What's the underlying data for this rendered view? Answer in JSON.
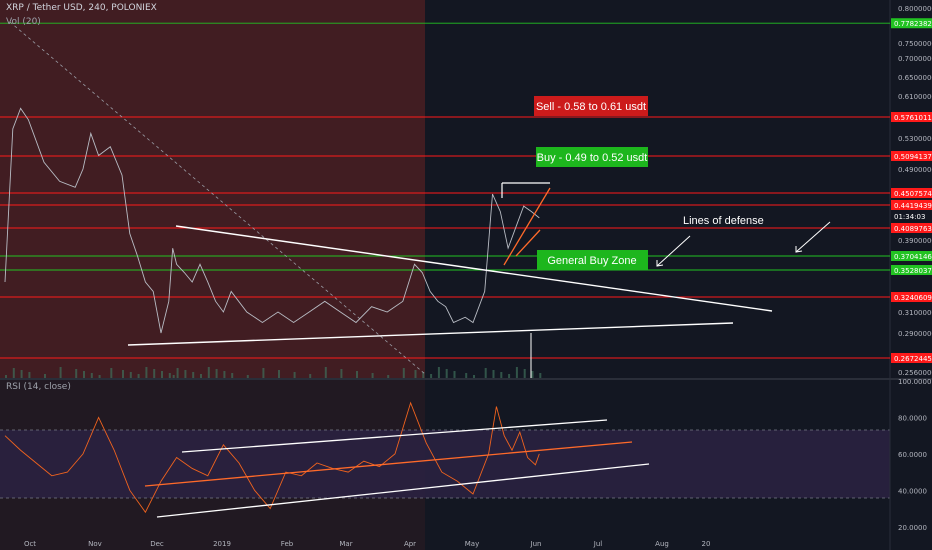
{
  "header": {
    "symbol_line": "XRP / Tether USD, 240, POLONIEX",
    "vol_label": "Vol (20)",
    "rsi_label": "RSI (14, close)"
  },
  "colors": {
    "background": "#131722",
    "bear_zone": "#4a1e22",
    "red_line": "#ff1a1a",
    "green_line": "#22c322",
    "price_line": "#b8bcc4",
    "rsi_line": "#f0631e",
    "rsi_band": "#2a2140",
    "trend_line": "#ffffff"
  },
  "chart_data": [
    {
      "type": "line",
      "name": "price",
      "x_ticks": [
        "Oct",
        "Nov",
        "Dec",
        "2019",
        "Feb",
        "Mar",
        "Apr",
        "May",
        "Jun",
        "Jul",
        "Aug",
        "20"
      ],
      "y_ticks": [
        "0.80000000",
        "0.75000000",
        "0.70000000",
        "0.65000000",
        "0.61000000",
        "0.53000000",
        "0.49000000",
        "0.39000000",
        "0.31000000",
        "0.29000000",
        "0.25600000"
      ],
      "ylim": [
        0.25,
        0.82
      ],
      "price_levels": [
        {
          "value": 0.77823822,
          "label": "0.77823822",
          "color": "#22c322"
        },
        {
          "value": 0.57610114,
          "label": "0.57610114",
          "color": "#ff1a1a"
        },
        {
          "value": 0.50941372,
          "label": "0.50941372",
          "color": "#ff1a1a"
        },
        {
          "value": 0.45075747,
          "label": "0.45075747",
          "color": "#ff1a1a"
        },
        {
          "value": 0.44194398,
          "label": "0.44194398",
          "color": "#ff1a1a"
        },
        {
          "value": 0.422,
          "label": "01:34:03",
          "color": "#ffffff"
        },
        {
          "value": 0.40897634,
          "label": "0.40897634",
          "color": "#ff1a1a"
        },
        {
          "value": 0.37041461,
          "label": "0.37041461",
          "color": "#22c322"
        },
        {
          "value": 0.35280374,
          "label": "0.35280374",
          "color": "#22c322"
        },
        {
          "value": 0.32406096,
          "label": "0.32406096",
          "color": "#ff1a1a"
        },
        {
          "value": 0.26724453,
          "label": "0.26724453",
          "color": "#ff1a1a"
        }
      ],
      "series_points": [
        [
          0.0,
          0.34
        ],
        [
          0.01,
          0.55
        ],
        [
          0.02,
          0.59
        ],
        [
          0.03,
          0.57
        ],
        [
          0.05,
          0.5
        ],
        [
          0.07,
          0.47
        ],
        [
          0.09,
          0.46
        ],
        [
          0.1,
          0.49
        ],
        [
          0.11,
          0.54
        ],
        [
          0.12,
          0.51
        ],
        [
          0.135,
          0.52
        ],
        [
          0.15,
          0.48
        ],
        [
          0.16,
          0.4
        ],
        [
          0.17,
          0.37
        ],
        [
          0.18,
          0.34
        ],
        [
          0.19,
          0.33
        ],
        [
          0.2,
          0.29
        ],
        [
          0.21,
          0.32
        ],
        [
          0.215,
          0.38
        ],
        [
          0.22,
          0.36
        ],
        [
          0.23,
          0.35
        ],
        [
          0.24,
          0.34
        ],
        [
          0.25,
          0.36
        ],
        [
          0.26,
          0.34
        ],
        [
          0.27,
          0.32
        ],
        [
          0.28,
          0.31
        ],
        [
          0.29,
          0.33
        ],
        [
          0.31,
          0.31
        ],
        [
          0.33,
          0.3
        ],
        [
          0.35,
          0.31
        ],
        [
          0.37,
          0.3
        ],
        [
          0.39,
          0.31
        ],
        [
          0.41,
          0.32
        ],
        [
          0.43,
          0.31
        ],
        [
          0.45,
          0.3
        ],
        [
          0.47,
          0.315
        ],
        [
          0.49,
          0.31
        ],
        [
          0.51,
          0.32
        ],
        [
          0.525,
          0.36
        ],
        [
          0.535,
          0.35
        ],
        [
          0.545,
          0.33
        ],
        [
          0.555,
          0.32
        ],
        [
          0.565,
          0.315
        ],
        [
          0.575,
          0.3
        ],
        [
          0.59,
          0.305
        ],
        [
          0.6,
          0.3
        ],
        [
          0.615,
          0.33
        ],
        [
          0.625,
          0.45
        ],
        [
          0.635,
          0.43
        ],
        [
          0.645,
          0.38
        ],
        [
          0.655,
          0.41
        ],
        [
          0.665,
          0.44
        ],
        [
          0.675,
          0.43
        ],
        [
          0.685,
          0.42
        ]
      ],
      "annotations": [
        {
          "text": "Sell - 0.58 to 0.61 usdt",
          "color": "#cc1b1b"
        },
        {
          "text": "Buy - 0.49 to 0.52 usdt",
          "color": "#1db61d"
        },
        {
          "text": "General Buy Zone",
          "color": "#1db61d"
        },
        {
          "text": "Lines of defense"
        }
      ]
    },
    {
      "type": "line",
      "name": "RSI",
      "y_ticks": [
        "100.0000",
        "80.0000",
        "60.0000",
        "40.0000",
        "20.0000"
      ],
      "ylim": [
        10,
        100
      ],
      "band": [
        30,
        70
      ],
      "series_points": [
        [
          0.0,
          70
        ],
        [
          0.02,
          62
        ],
        [
          0.04,
          55
        ],
        [
          0.06,
          48
        ],
        [
          0.08,
          50
        ],
        [
          0.1,
          60
        ],
        [
          0.12,
          80
        ],
        [
          0.14,
          62
        ],
        [
          0.16,
          40
        ],
        [
          0.18,
          28
        ],
        [
          0.2,
          45
        ],
        [
          0.22,
          58
        ],
        [
          0.24,
          52
        ],
        [
          0.26,
          48
        ],
        [
          0.28,
          65
        ],
        [
          0.3,
          55
        ],
        [
          0.32,
          40
        ],
        [
          0.34,
          30
        ],
        [
          0.36,
          50
        ],
        [
          0.38,
          48
        ],
        [
          0.4,
          55
        ],
        [
          0.42,
          52
        ],
        [
          0.44,
          50
        ],
        [
          0.46,
          56
        ],
        [
          0.48,
          53
        ],
        [
          0.5,
          60
        ],
        [
          0.52,
          88
        ],
        [
          0.54,
          66
        ],
        [
          0.56,
          50
        ],
        [
          0.58,
          45
        ],
        [
          0.6,
          38
        ],
        [
          0.62,
          60
        ],
        [
          0.63,
          86
        ],
        [
          0.64,
          70
        ],
        [
          0.65,
          62
        ],
        [
          0.66,
          72
        ],
        [
          0.67,
          58
        ],
        [
          0.68,
          54
        ],
        [
          0.685,
          60
        ]
      ]
    }
  ]
}
